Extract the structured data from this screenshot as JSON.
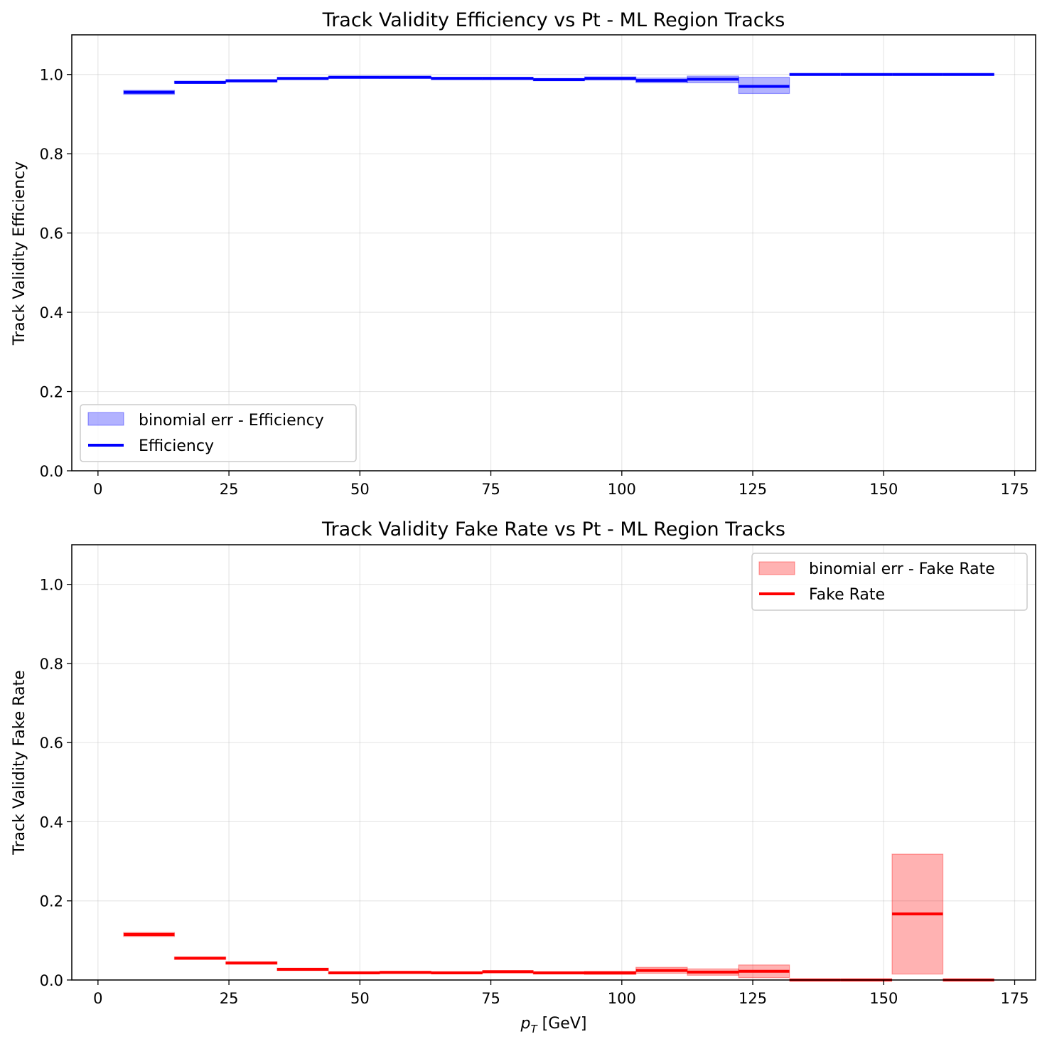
{
  "chart_data": [
    {
      "type": "line",
      "title": "Track Validity Efficiency vs Pt - ML Region Tracks",
      "xlabel": "",
      "ylabel": "Track Validity Efficiency",
      "xlim": [
        -5,
        179
      ],
      "ylim": [
        0,
        1.1
      ],
      "xticks": [
        "0",
        "25",
        "50",
        "75",
        "100",
        "125",
        "150",
        "175"
      ],
      "yticks": [
        "0.0",
        "0.2",
        "0.4",
        "0.6",
        "0.8",
        "1.0"
      ],
      "grid": true,
      "legend_position": "lower-left",
      "x_edges": [
        4.9,
        14.6,
        24.4,
        34.2,
        44.0,
        53.8,
        63.6,
        73.4,
        83.1,
        92.9,
        102.7,
        112.5,
        122.3,
        132.0,
        141.8,
        151.6,
        161.3,
        171.1
      ],
      "series": [
        {
          "name": "Efficiency",
          "color": "#0000ff",
          "values": [
            0.955,
            0.98,
            0.984,
            0.99,
            0.993,
            0.993,
            0.99,
            0.99,
            0.987,
            0.99,
            0.985,
            0.988,
            0.97,
            1.0,
            1.0,
            1.0,
            1.0
          ],
          "err_low": [
            0.95,
            0.978,
            0.981,
            0.987,
            0.99,
            0.99,
            0.987,
            0.987,
            0.984,
            0.986,
            0.979,
            0.979,
            0.952,
            1.0,
            1.0,
            1.0,
            1.0
          ],
          "err_high": [
            0.96,
            0.983,
            0.987,
            0.992,
            0.995,
            0.995,
            0.993,
            0.993,
            0.99,
            0.994,
            0.991,
            0.996,
            0.993,
            1.0,
            1.0,
            1.0,
            1.0
          ]
        }
      ],
      "band_label": "binomial err - Efficiency",
      "band_color": "#0000ff"
    },
    {
      "type": "line",
      "title": "Track Validity Fake Rate vs Pt - ML Region Tracks",
      "xlabel": "p_T [GeV]",
      "ylabel": "Track Validity Fake Rate",
      "xlim": [
        -5,
        179
      ],
      "ylim": [
        0,
        1.1
      ],
      "xticks": [
        "0",
        "25",
        "50",
        "75",
        "100",
        "125",
        "150",
        "175"
      ],
      "yticks": [
        "0.0",
        "0.2",
        "0.4",
        "0.6",
        "0.8",
        "1.0"
      ],
      "grid": true,
      "legend_position": "upper-right",
      "x_edges": [
        4.9,
        14.6,
        24.4,
        34.2,
        44.0,
        53.8,
        63.6,
        73.4,
        83.1,
        92.9,
        102.7,
        112.5,
        122.3,
        132.0,
        141.8,
        151.6,
        161.3,
        171.1
      ],
      "series": [
        {
          "name": "Fake Rate",
          "color": "#ff0000",
          "values": [
            0.115,
            0.055,
            0.043,
            0.027,
            0.018,
            0.019,
            0.018,
            0.021,
            0.018,
            0.018,
            0.024,
            0.02,
            0.022,
            0.0,
            0.0,
            0.167,
            0.0
          ],
          "err_low": [
            0.11,
            0.052,
            0.04,
            0.024,
            0.016,
            0.017,
            0.016,
            0.018,
            0.015,
            0.014,
            0.017,
            0.012,
            0.006,
            0.0,
            0.0,
            0.015,
            0.0
          ],
          "err_high": [
            0.12,
            0.058,
            0.046,
            0.03,
            0.021,
            0.022,
            0.021,
            0.024,
            0.021,
            0.022,
            0.032,
            0.028,
            0.038,
            0.0,
            0.0,
            0.318,
            0.0
          ]
        }
      ],
      "band_label": "binomial err - Fake Rate",
      "band_color": "#ff0000"
    }
  ]
}
